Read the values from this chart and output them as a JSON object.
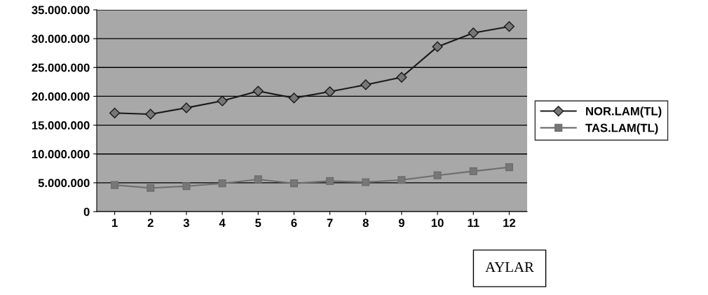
{
  "chart_data": {
    "type": "line",
    "xlabel": "AYLAR",
    "categories": [
      "1",
      "2",
      "3",
      "4",
      "5",
      "6",
      "7",
      "8",
      "9",
      "10",
      "11",
      "12"
    ],
    "series": [
      {
        "name": "NOR.LAM(TL)",
        "color": "#1a1a1a",
        "marker": "diamond",
        "values": [
          17100000,
          16900000,
          18000000,
          19200000,
          20900000,
          19700000,
          20800000,
          22000000,
          23300000,
          28600000,
          31000000,
          32100000
        ]
      },
      {
        "name": "TAS.LAM(TL)",
        "color": "#6e6e6e",
        "marker": "square",
        "values": [
          4600000,
          4100000,
          4400000,
          4900000,
          5600000,
          4900000,
          5300000,
          5100000,
          5500000,
          6300000,
          7000000,
          7700000
        ]
      }
    ],
    "ylim": [
      0,
      35000000
    ],
    "yticks": [
      {
        "value": 0,
        "label": "0"
      },
      {
        "value": 5000000,
        "label": "5.000.000"
      },
      {
        "value": 10000000,
        "label": "10.000.000"
      },
      {
        "value": 15000000,
        "label": "15.000.000"
      },
      {
        "value": 20000000,
        "label": "20.000.000"
      },
      {
        "value": 25000000,
        "label": "25.000.000"
      },
      {
        "value": 30000000,
        "label": "30.000.000"
      },
      {
        "value": 35000000,
        "label": "35.000.000"
      }
    ],
    "grid": "y",
    "legend": "right",
    "line_style": "solid"
  }
}
